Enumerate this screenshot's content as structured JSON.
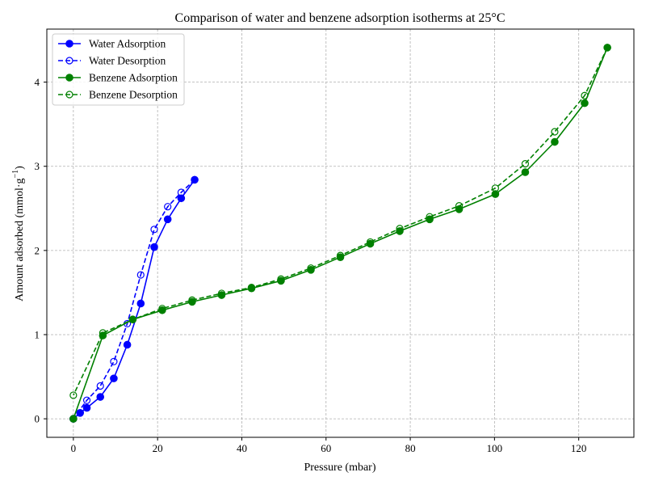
{
  "chart_data": {
    "type": "line",
    "title": "Comparison of water and benzene adsorption isotherms at 25°C",
    "xlabel": "Pressure (mbar)",
    "ylabel_main": "Amount adsorbed (mmol·g",
    "ylabel_sup": "−1",
    "ylabel_tail": ")",
    "xlim": [
      -6.3,
      133.1
    ],
    "ylim": [
      -0.22,
      4.63
    ],
    "xticks": [
      0,
      20,
      40,
      60,
      80,
      100,
      120
    ],
    "yticks": [
      0,
      1,
      2,
      3,
      4
    ],
    "grid": true,
    "legend_position": "top-left",
    "series": [
      {
        "name": "Water Adsorption",
        "color": "#0000ff",
        "linestyle": "solid",
        "marker": "filled-circle",
        "x": [
          0,
          1.6,
          3.2,
          6.4,
          9.6,
          12.8,
          16.0,
          19.2,
          22.4,
          25.6,
          28.8
        ],
        "y": [
          0.0,
          0.07,
          0.13,
          0.26,
          0.48,
          0.88,
          1.37,
          2.04,
          2.37,
          2.62,
          2.84
        ]
      },
      {
        "name": "Water Desorption",
        "color": "#0000ff",
        "linestyle": "dashed",
        "marker": "open-circle",
        "x": [
          28.8,
          25.6,
          22.4,
          19.2,
          16.0,
          12.8,
          9.6,
          6.4,
          3.2,
          0
        ],
        "y": [
          2.84,
          2.69,
          2.52,
          2.25,
          1.71,
          1.13,
          0.68,
          0.39,
          0.22,
          0.0
        ]
      },
      {
        "name": "Benzene Adsorption",
        "color": "#008000",
        "linestyle": "solid",
        "marker": "filled-circle",
        "x": [
          0,
          7.0,
          14.1,
          21.1,
          28.2,
          35.2,
          42.3,
          49.3,
          56.4,
          63.4,
          70.5,
          77.5,
          84.6,
          91.6,
          100.2,
          107.3,
          114.3,
          121.4,
          126.8
        ],
        "y": [
          0.0,
          0.99,
          1.18,
          1.29,
          1.39,
          1.47,
          1.55,
          1.64,
          1.77,
          1.92,
          2.08,
          2.23,
          2.37,
          2.49,
          2.67,
          2.93,
          3.29,
          3.75,
          4.41
        ]
      },
      {
        "name": "Benzene Desorption",
        "color": "#008000",
        "linestyle": "dashed",
        "marker": "open-circle",
        "x": [
          126.8,
          121.4,
          114.3,
          107.3,
          100.2,
          91.6,
          84.6,
          77.5,
          70.5,
          63.4,
          56.4,
          49.3,
          42.3,
          35.2,
          28.2,
          21.1,
          14.1,
          7.0,
          0
        ],
        "y": [
          4.41,
          3.84,
          3.41,
          3.03,
          2.74,
          2.53,
          2.4,
          2.26,
          2.1,
          1.94,
          1.79,
          1.66,
          1.56,
          1.49,
          1.41,
          1.31,
          1.18,
          1.02,
          0.28
        ]
      }
    ]
  }
}
